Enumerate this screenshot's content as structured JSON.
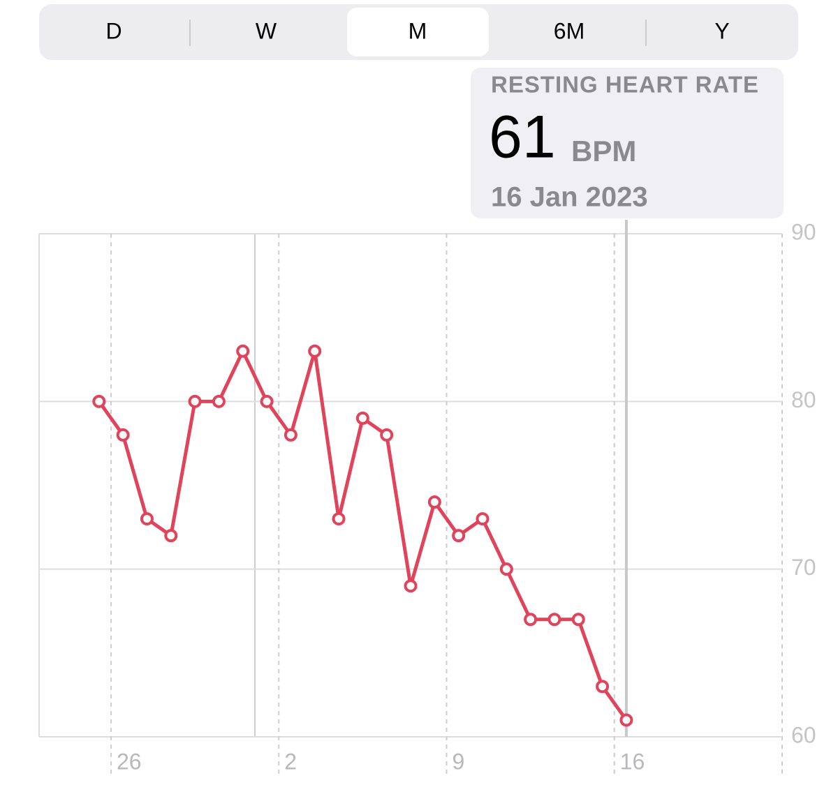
{
  "segments": [
    "D",
    "W",
    "M",
    "6M",
    "Y"
  ],
  "tooltip": {
    "title": "RESTING HEART RATE",
    "value": 61,
    "unit": "BPM",
    "date": "16 Jan 2023"
  },
  "chart_data": {
    "type": "line",
    "categories": [
      null,
      null,
      null,
      "26",
      null,
      null,
      null,
      null,
      null,
      null,
      "2",
      null,
      null,
      null,
      null,
      null,
      null,
      "9",
      null,
      null,
      null,
      null,
      null,
      null,
      "16",
      null,
      null,
      null,
      null,
      null,
      null
    ],
    "series": [
      {
        "color": "#e0435a",
        "values": [
          null,
          null,
          80,
          78,
          73,
          72,
          80,
          80,
          83,
          80,
          78,
          83,
          73,
          79,
          78,
          69,
          74,
          72,
          73,
          70,
          67,
          67,
          67,
          63,
          61,
          null,
          null,
          null,
          null,
          null,
          null
        ]
      }
    ],
    "ylim": [
      60,
      90
    ],
    "yticks": [
      60,
      70,
      80,
      90
    ],
    "grid": true
  }
}
